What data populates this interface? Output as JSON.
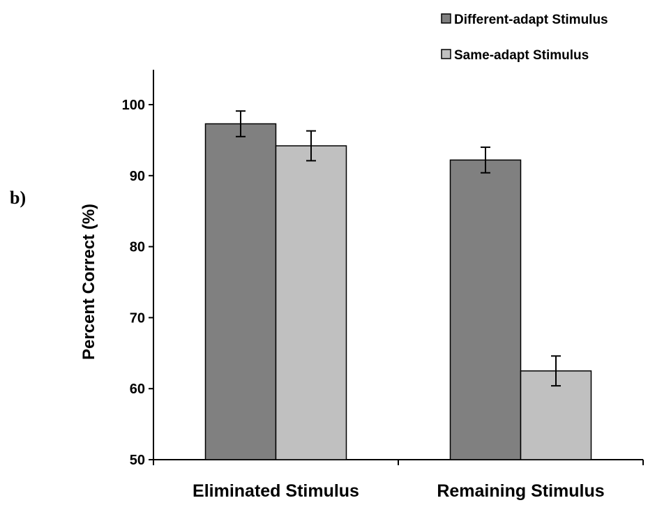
{
  "panel_label": "b)",
  "chart_data": {
    "type": "bar",
    "title": "",
    "xlabel": "",
    "ylabel": "Percent Correct (%)",
    "categories": [
      "Eliminated Stimulus",
      "Remaining Stimulus"
    ],
    "ylim": [
      50,
      105
    ],
    "yticks": [
      50,
      60,
      70,
      80,
      90,
      100
    ],
    "grid": false,
    "legend_position": "top-right",
    "series": [
      {
        "name": "Different-adapt Stimulus",
        "color": "#808080",
        "values": [
          97.3,
          92.2
        ],
        "errors": [
          1.8,
          1.8
        ]
      },
      {
        "name": "Same-adapt Stimulus",
        "color": "#c0c0c0",
        "values": [
          94.2,
          62.5
        ],
        "errors": [
          2.1,
          2.1
        ]
      }
    ]
  }
}
